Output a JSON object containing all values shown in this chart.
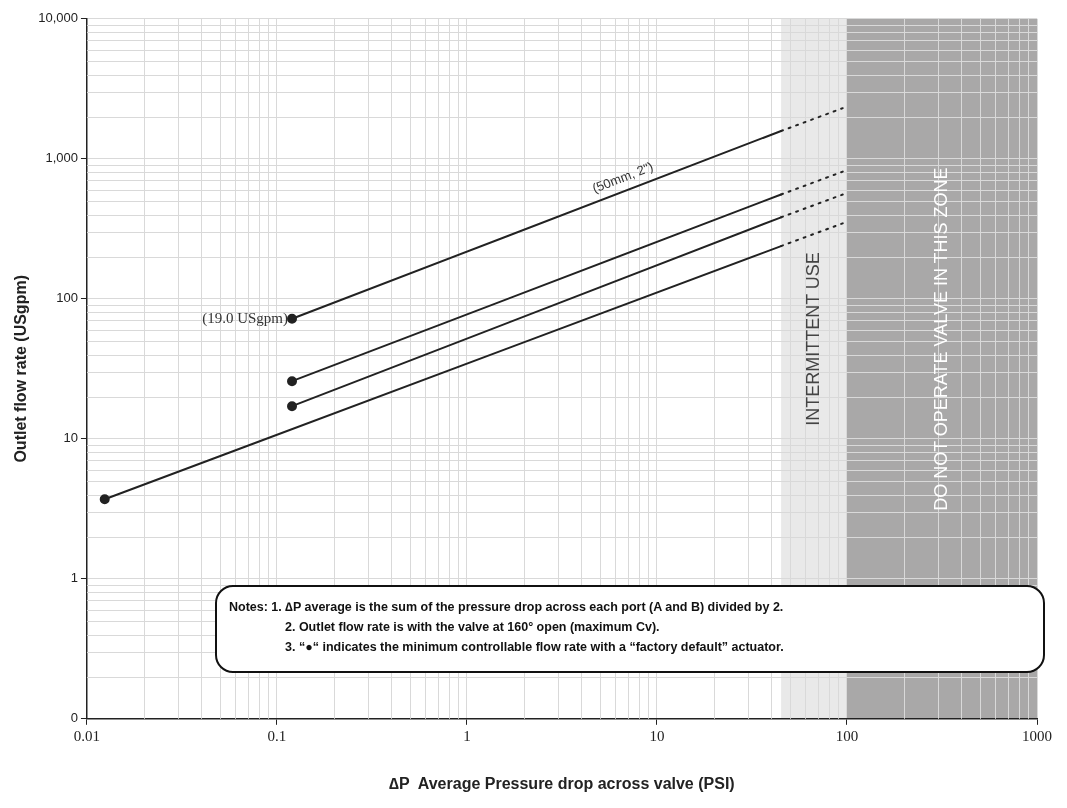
{
  "chart_data": {
    "type": "line",
    "xlabel": "∆P  Average Pressure drop across valve (PSI)",
    "ylabel": "Outlet flow rate (USgpm)",
    "log": "xy",
    "grid": true,
    "legend": false,
    "xlim": [
      0.01,
      1000
    ],
    "xticks": [
      0.01,
      0.1,
      1,
      10,
      100,
      1000
    ],
    "ylim": [
      0.1,
      10000
    ],
    "yticks": [
      {
        "value": 0.1,
        "label": "0"
      },
      1,
      10,
      100,
      {
        "value": 1000,
        "label": "1,000"
      },
      {
        "value": 10000,
        "label": "10,000"
      }
    ],
    "series": [
      {
        "color": "#222222",
        "marker": "none",
        "line_style": "solid",
        "x": [
          0.12,
          45
        ],
        "values": [
          72,
          1580
        ]
      },
      {
        "color": "#222222",
        "marker": "none",
        "line_style": "solid",
        "x": [
          0.12,
          45
        ],
        "values": [
          25.8,
          556
        ]
      },
      {
        "color": "#222222",
        "marker": "none",
        "line_style": "solid",
        "x": [
          0.12,
          45
        ],
        "values": [
          17.1,
          382
        ]
      },
      {
        "color": "#222222",
        "marker": "none",
        "line_style": "solid",
        "x": [
          0.0124,
          45
        ],
        "values": [
          3.7,
          238
        ]
      },
      {
        "color": "#222222",
        "marker": "none",
        "line_style": "dotted",
        "x": [
          45,
          95
        ],
        "values": [
          1580,
          2300
        ]
      },
      {
        "color": "#222222",
        "marker": "none",
        "line_style": "dotted",
        "x": [
          45,
          95
        ],
        "values": [
          556,
          810
        ]
      },
      {
        "color": "#222222",
        "marker": "none",
        "line_style": "dotted",
        "x": [
          45,
          95
        ],
        "values": [
          382,
          556
        ]
      },
      {
        "color": "#222222",
        "marker": "none",
        "line_style": "dotted",
        "x": [
          45,
          95
        ],
        "values": [
          238,
          346
        ]
      },
      {
        "type": "scatter",
        "color": "#222222",
        "marker": "circle",
        "x": [
          0.12,
          0.12,
          0.12,
          0.0124
        ],
        "values": [
          72,
          25.8,
          17.1,
          3.7
        ]
      }
    ],
    "bands": [
      {
        "axis": "x",
        "from": 45,
        "to": 100,
        "label": "INTERMITTENT USE",
        "color": "#e9e9e9"
      },
      {
        "axis": "x",
        "from": 100,
        "to": 1000,
        "label": "DO NOT OPERATE VALVE IN THIS ZONE",
        "color": "#a9a8a8"
      }
    ],
    "annotations": [
      {
        "text": "(19.0 USgpm)",
        "x": 0.12,
        "y": 72
      },
      {
        "text": "(50mm, 2\")",
        "x": 7,
        "y": 600
      },
      "Notes: 1. ∆P average is the sum of the pressure drop across each port (A and B) divided by 2.",
      "2. Outlet flow rate is with the valve at 160° open (maximum Cv).",
      "3. “●“  indicates the minimum controllable flow rate with a “factory default” actuator."
    ]
  }
}
